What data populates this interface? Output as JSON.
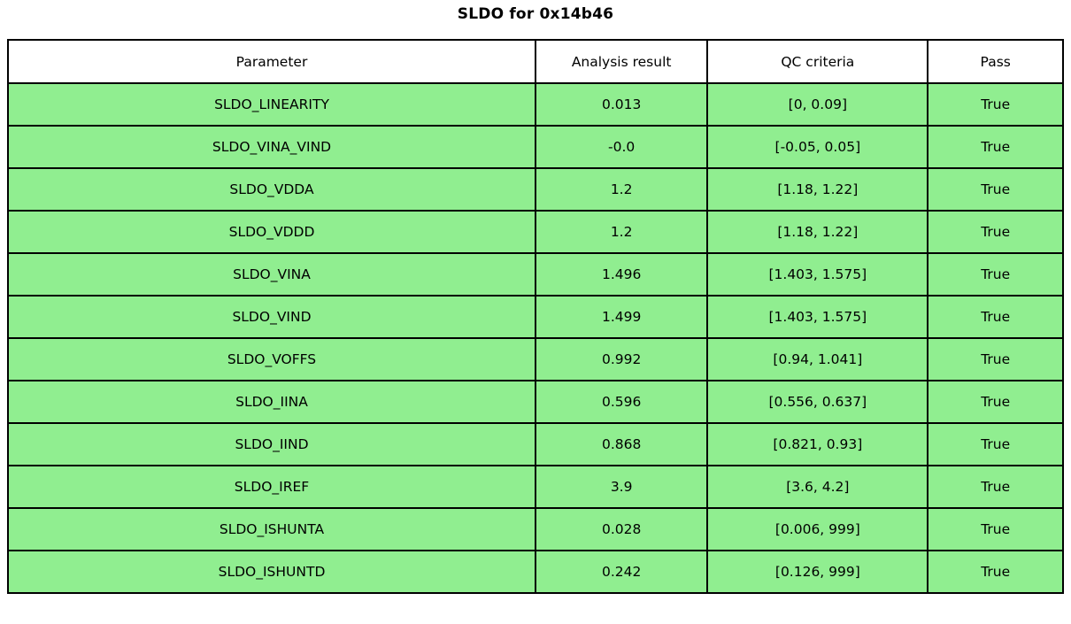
{
  "chart_data": {
    "type": "table",
    "title": "SLDO for 0x14b46",
    "columns": [
      "Parameter",
      "Analysis result",
      "QC criteria",
      "Pass"
    ],
    "rows": [
      [
        "SLDO_LINEARITY",
        "0.013",
        "[0, 0.09]",
        "True"
      ],
      [
        "SLDO_VINA_VIND",
        "-0.0",
        "[-0.05, 0.05]",
        "True"
      ],
      [
        "SLDO_VDDA",
        "1.2",
        "[1.18, 1.22]",
        "True"
      ],
      [
        "SLDO_VDDD",
        "1.2",
        "[1.18, 1.22]",
        "True"
      ],
      [
        "SLDO_VINA",
        "1.496",
        "[1.403, 1.575]",
        "True"
      ],
      [
        "SLDO_VIND",
        "1.499",
        "[1.403, 1.575]",
        "True"
      ],
      [
        "SLDO_VOFFS",
        "0.992",
        "[0.94, 1.041]",
        "True"
      ],
      [
        "SLDO_IINA",
        "0.596",
        "[0.556, 0.637]",
        "True"
      ],
      [
        "SLDO_IIND",
        "0.868",
        "[0.821, 0.93]",
        "True"
      ],
      [
        "SLDO_IREF",
        "3.9",
        "[3.6, 4.2]",
        "True"
      ],
      [
        "SLDO_ISHUNTA",
        "0.028",
        "[0.006, 999]",
        "True"
      ],
      [
        "SLDO_ISHUNTD",
        "0.242",
        "[0.126, 999]",
        "True"
      ]
    ],
    "layout": {
      "header_fill_color": "#FFFFFF",
      "row_fill_color": "#90EE90",
      "border_color": "#000000",
      "pass_column_all_true": true,
      "legend": "none"
    }
  }
}
